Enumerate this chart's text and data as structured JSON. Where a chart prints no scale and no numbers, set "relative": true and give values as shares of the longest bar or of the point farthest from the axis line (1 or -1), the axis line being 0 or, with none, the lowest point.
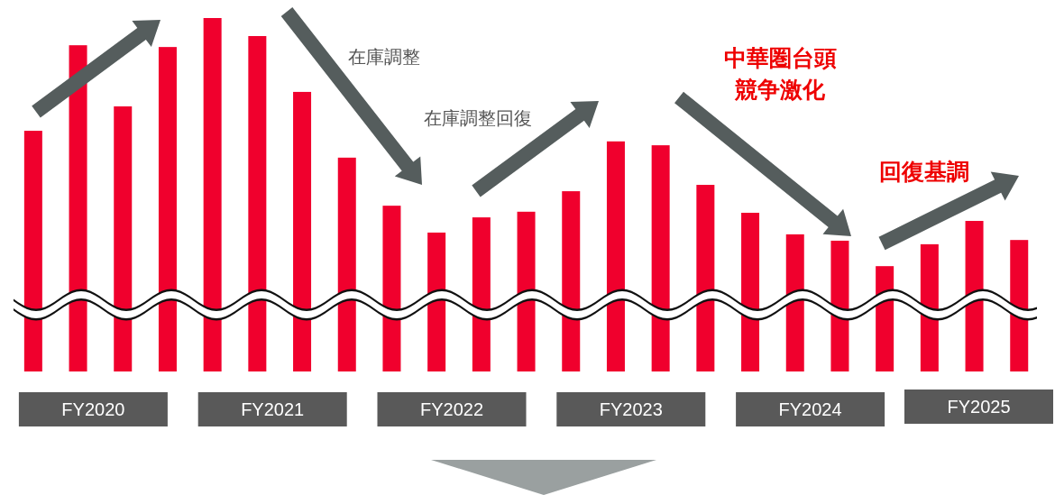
{
  "chart_data": {
    "type": "bar",
    "relative": true,
    "categories": [
      null,
      null,
      null,
      null,
      null,
      null,
      null,
      null,
      null,
      null,
      null,
      null,
      null,
      null,
      null,
      null,
      null,
      null,
      null,
      null,
      null,
      null,
      null
    ],
    "series": [
      {
        "color": "#f0002d",
        "values": [
          0.681,
          0.923,
          0.75,
          0.918,
          1,
          0.949,
          0.791,
          0.605,
          0.469,
          0.393,
          0.436,
          0.452,
          0.51,
          0.651,
          0.64,
          0.528,
          0.449,
          0.388,
          0.37,
          0.298,
          0.36,
          0.426,
          0.372
        ]
      }
    ],
    "annotations": [
      "FY2020",
      "FY2021",
      "FY2022",
      "FY2023",
      "FY2024",
      "FY2025",
      "在庫調整",
      "在庫調整回復",
      "中華圏台頭",
      "競争激化",
      "回復基調"
    ]
  }
}
